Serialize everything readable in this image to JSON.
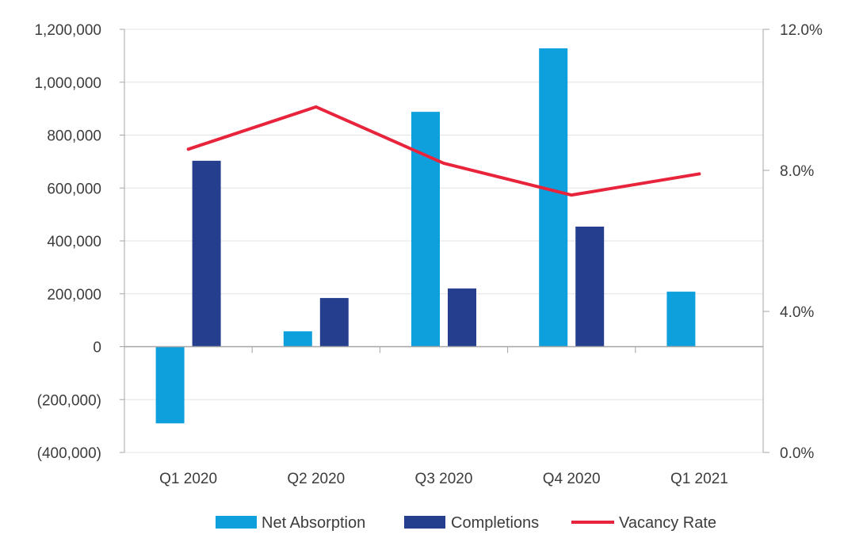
{
  "chart_data": {
    "type": "bar",
    "title": "",
    "xlabel": "",
    "ylabel": "",
    "categories": [
      "Q1 2020",
      "Q2 2020",
      "Q3 2020",
      "Q4 2020",
      "Q1 2021"
    ],
    "series": [
      {
        "name": "Net Absorption",
        "type": "bar",
        "axis": "left",
        "color": "#0ea0dc",
        "values": [
          -290000,
          58000,
          888000,
          1128000,
          208000
        ]
      },
      {
        "name": "Completions",
        "type": "bar",
        "axis": "left",
        "color": "#263e8e",
        "values": [
          703000,
          184000,
          220000,
          454000,
          null
        ]
      },
      {
        "name": "Vacancy Rate",
        "type": "line",
        "axis": "right",
        "color": "#e8243c",
        "values": [
          8.6,
          9.8,
          8.2,
          7.3,
          7.9
        ]
      }
    ],
    "ylim": [
      -400000,
      1200000
    ],
    "y2lim": [
      0,
      12
    ],
    "yticks": [
      "(400,000)",
      "(200,000)",
      "0",
      "200,000",
      "400,000",
      "600,000",
      "800,000",
      "1,000,000",
      "1,200,000"
    ],
    "yticks_values": [
      -400000,
      -200000,
      0,
      200000,
      400000,
      600000,
      800000,
      1000000,
      1200000
    ],
    "y2ticks": [
      "0.0%",
      "4.0%",
      "8.0%",
      "12.0%"
    ],
    "y2ticks_values": [
      0,
      4,
      8,
      12
    ],
    "legend_position": "bottom-center",
    "grid": "horizontal"
  }
}
